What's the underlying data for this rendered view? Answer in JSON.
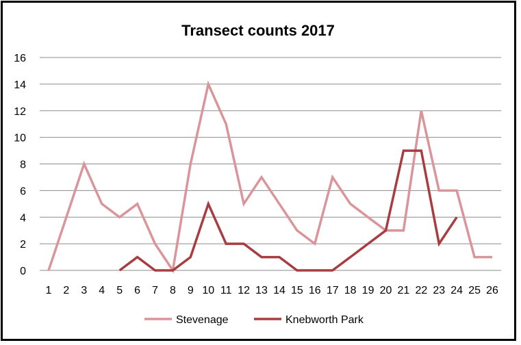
{
  "chart_data": {
    "type": "line",
    "title": "Transect counts 2017",
    "xlabel": "",
    "ylabel": "",
    "x": [
      1,
      2,
      3,
      4,
      5,
      6,
      7,
      8,
      9,
      10,
      11,
      12,
      13,
      14,
      15,
      16,
      17,
      18,
      19,
      20,
      21,
      22,
      23,
      24,
      25,
      26
    ],
    "ylim": [
      0,
      16
    ],
    "yticks": [
      0,
      2,
      4,
      6,
      8,
      10,
      12,
      14,
      16
    ],
    "grid": true,
    "legend": "bottom",
    "series": [
      {
        "name": "Stevenage",
        "color": "#d9959a",
        "values": [
          0,
          4,
          8,
          5,
          4,
          5,
          2,
          0,
          8,
          14,
          11,
          5,
          7,
          5,
          3,
          2,
          7,
          5,
          4,
          3,
          3,
          12,
          6,
          6,
          1,
          1
        ]
      },
      {
        "name": "Knebworth Park",
        "color": "#a83c40",
        "values": [
          null,
          null,
          null,
          null,
          0,
          1,
          0,
          0,
          1,
          5,
          2,
          2,
          1,
          1,
          0,
          0,
          0,
          1,
          2,
          3,
          9,
          9,
          2,
          4,
          null,
          null
        ]
      }
    ]
  }
}
